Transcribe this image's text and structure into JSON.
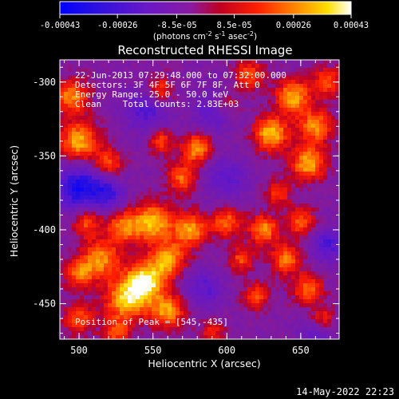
{
  "window": {
    "timestamp": "14-May-2022 22:23"
  },
  "chart_data": {
    "type": "heatmap",
    "title": "Reconstructed RHESSI Image",
    "xlabel": "Heliocentric X (arcsec)",
    "ylabel": "Heliocentric Y (arcsec)",
    "xlim": [
      487,
      676
    ],
    "ylim": [
      -474,
      -285
    ],
    "xticks": [
      "500",
      "550",
      "600",
      "650"
    ],
    "xtick_values": [
      500,
      550,
      600,
      650
    ],
    "yticks": [
      "-300",
      "-350",
      "-400",
      "-450"
    ],
    "ytick_values": [
      -300,
      -350,
      -400,
      -450
    ],
    "colorbar": {
      "range": [
        -0.00043,
        0.00043
      ],
      "tick_labels": [
        "-0.00043",
        "-0.00026",
        "-8.5e-05",
        "8.5e-05",
        "0.00026",
        "0.00043"
      ],
      "tick_values": [
        -0.00043,
        -0.00026,
        -8.5e-05,
        8.5e-05,
        0.00026,
        0.00043
      ],
      "unit_text": "(photons cm",
      "unit_exp1": "-2",
      "unit_mid": " s",
      "unit_exp2": "-1",
      "unit_mid2": " asec",
      "unit_exp3": "-2",
      "unit_end": ")"
    },
    "annotations": {
      "line1": "22-Jun-2013 07:29:48.000 to 07:32:00.000",
      "line2": "Detectors: 3F 4F 5F 6F 7F 8F, Att 0",
      "line3": "Energy Range: 25.0 - 50.0 keV",
      "line4": "Clean    Total Counts: 2.83E+03",
      "peak": "Position of Peak = [545,-435]"
    },
    "peak_position": [
      545,
      -435
    ],
    "blobs": [
      {
        "x": 545,
        "y": -435,
        "v": 1.0,
        "s": 9
      },
      {
        "x": 532,
        "y": -447,
        "v": 0.85,
        "s": 10
      },
      {
        "x": 560,
        "y": -455,
        "v": 0.75,
        "s": 8
      },
      {
        "x": 515,
        "y": -420,
        "v": 0.7,
        "s": 9
      },
      {
        "x": 560,
        "y": -420,
        "v": 0.8,
        "s": 8
      },
      {
        "x": 550,
        "y": -395,
        "v": 0.85,
        "s": 9
      },
      {
        "x": 575,
        "y": -400,
        "v": 0.75,
        "s": 8
      },
      {
        "x": 530,
        "y": -398,
        "v": 0.65,
        "s": 8
      },
      {
        "x": 505,
        "y": -395,
        "v": 0.55,
        "s": 7
      },
      {
        "x": 500,
        "y": -430,
        "v": 0.6,
        "s": 7
      },
      {
        "x": 500,
        "y": -460,
        "v": 0.55,
        "s": 7
      },
      {
        "x": 525,
        "y": -470,
        "v": 0.5,
        "s": 7
      },
      {
        "x": 500,
        "y": -340,
        "v": 0.8,
        "s": 9
      },
      {
        "x": 520,
        "y": -355,
        "v": 0.55,
        "s": 7
      },
      {
        "x": 495,
        "y": -310,
        "v": 0.7,
        "s": 8
      },
      {
        "x": 555,
        "y": -340,
        "v": 0.5,
        "s": 6
      },
      {
        "x": 580,
        "y": -345,
        "v": 0.75,
        "s": 7
      },
      {
        "x": 570,
        "y": -365,
        "v": 0.6,
        "s": 7
      },
      {
        "x": 555,
        "y": -305,
        "v": 0.5,
        "s": 6
      },
      {
        "x": 615,
        "y": -295,
        "v": 0.55,
        "s": 7
      },
      {
        "x": 645,
        "y": -310,
        "v": 0.8,
        "s": 8
      },
      {
        "x": 630,
        "y": -335,
        "v": 0.85,
        "s": 8
      },
      {
        "x": 660,
        "y": -330,
        "v": 0.7,
        "s": 8
      },
      {
        "x": 655,
        "y": -355,
        "v": 0.8,
        "s": 8
      },
      {
        "x": 668,
        "y": -300,
        "v": 0.55,
        "s": 7
      },
      {
        "x": 635,
        "y": -375,
        "v": 0.45,
        "s": 6
      },
      {
        "x": 600,
        "y": -395,
        "v": 0.6,
        "s": 7
      },
      {
        "x": 625,
        "y": -400,
        "v": 0.7,
        "s": 7
      },
      {
        "x": 650,
        "y": -395,
        "v": 0.55,
        "s": 7
      },
      {
        "x": 610,
        "y": -420,
        "v": 0.5,
        "s": 6
      },
      {
        "x": 640,
        "y": -420,
        "v": 0.65,
        "s": 7
      },
      {
        "x": 620,
        "y": -445,
        "v": 0.55,
        "s": 6
      },
      {
        "x": 655,
        "y": -440,
        "v": 0.6,
        "s": 7
      },
      {
        "x": 665,
        "y": -460,
        "v": 0.45,
        "s": 6
      },
      {
        "x": 590,
        "y": -470,
        "v": 0.4,
        "s": 6
      },
      {
        "x": 600,
        "y": -315,
        "v": 0.35,
        "s": 6
      }
    ],
    "cold_spots": [
      {
        "x": 500,
        "y": -372,
        "v": -0.75,
        "s": 11
      },
      {
        "x": 520,
        "y": -375,
        "v": -0.5,
        "s": 8
      },
      {
        "x": 545,
        "y": -320,
        "v": -0.45,
        "s": 10
      },
      {
        "x": 590,
        "y": -320,
        "v": -0.35,
        "s": 10
      },
      {
        "x": 600,
        "y": -365,
        "v": -0.4,
        "s": 10
      },
      {
        "x": 668,
        "y": -410,
        "v": -0.5,
        "s": 8
      },
      {
        "x": 585,
        "y": -440,
        "v": -0.4,
        "s": 9
      },
      {
        "x": 660,
        "y": -470,
        "v": -0.35,
        "s": 8
      }
    ]
  }
}
